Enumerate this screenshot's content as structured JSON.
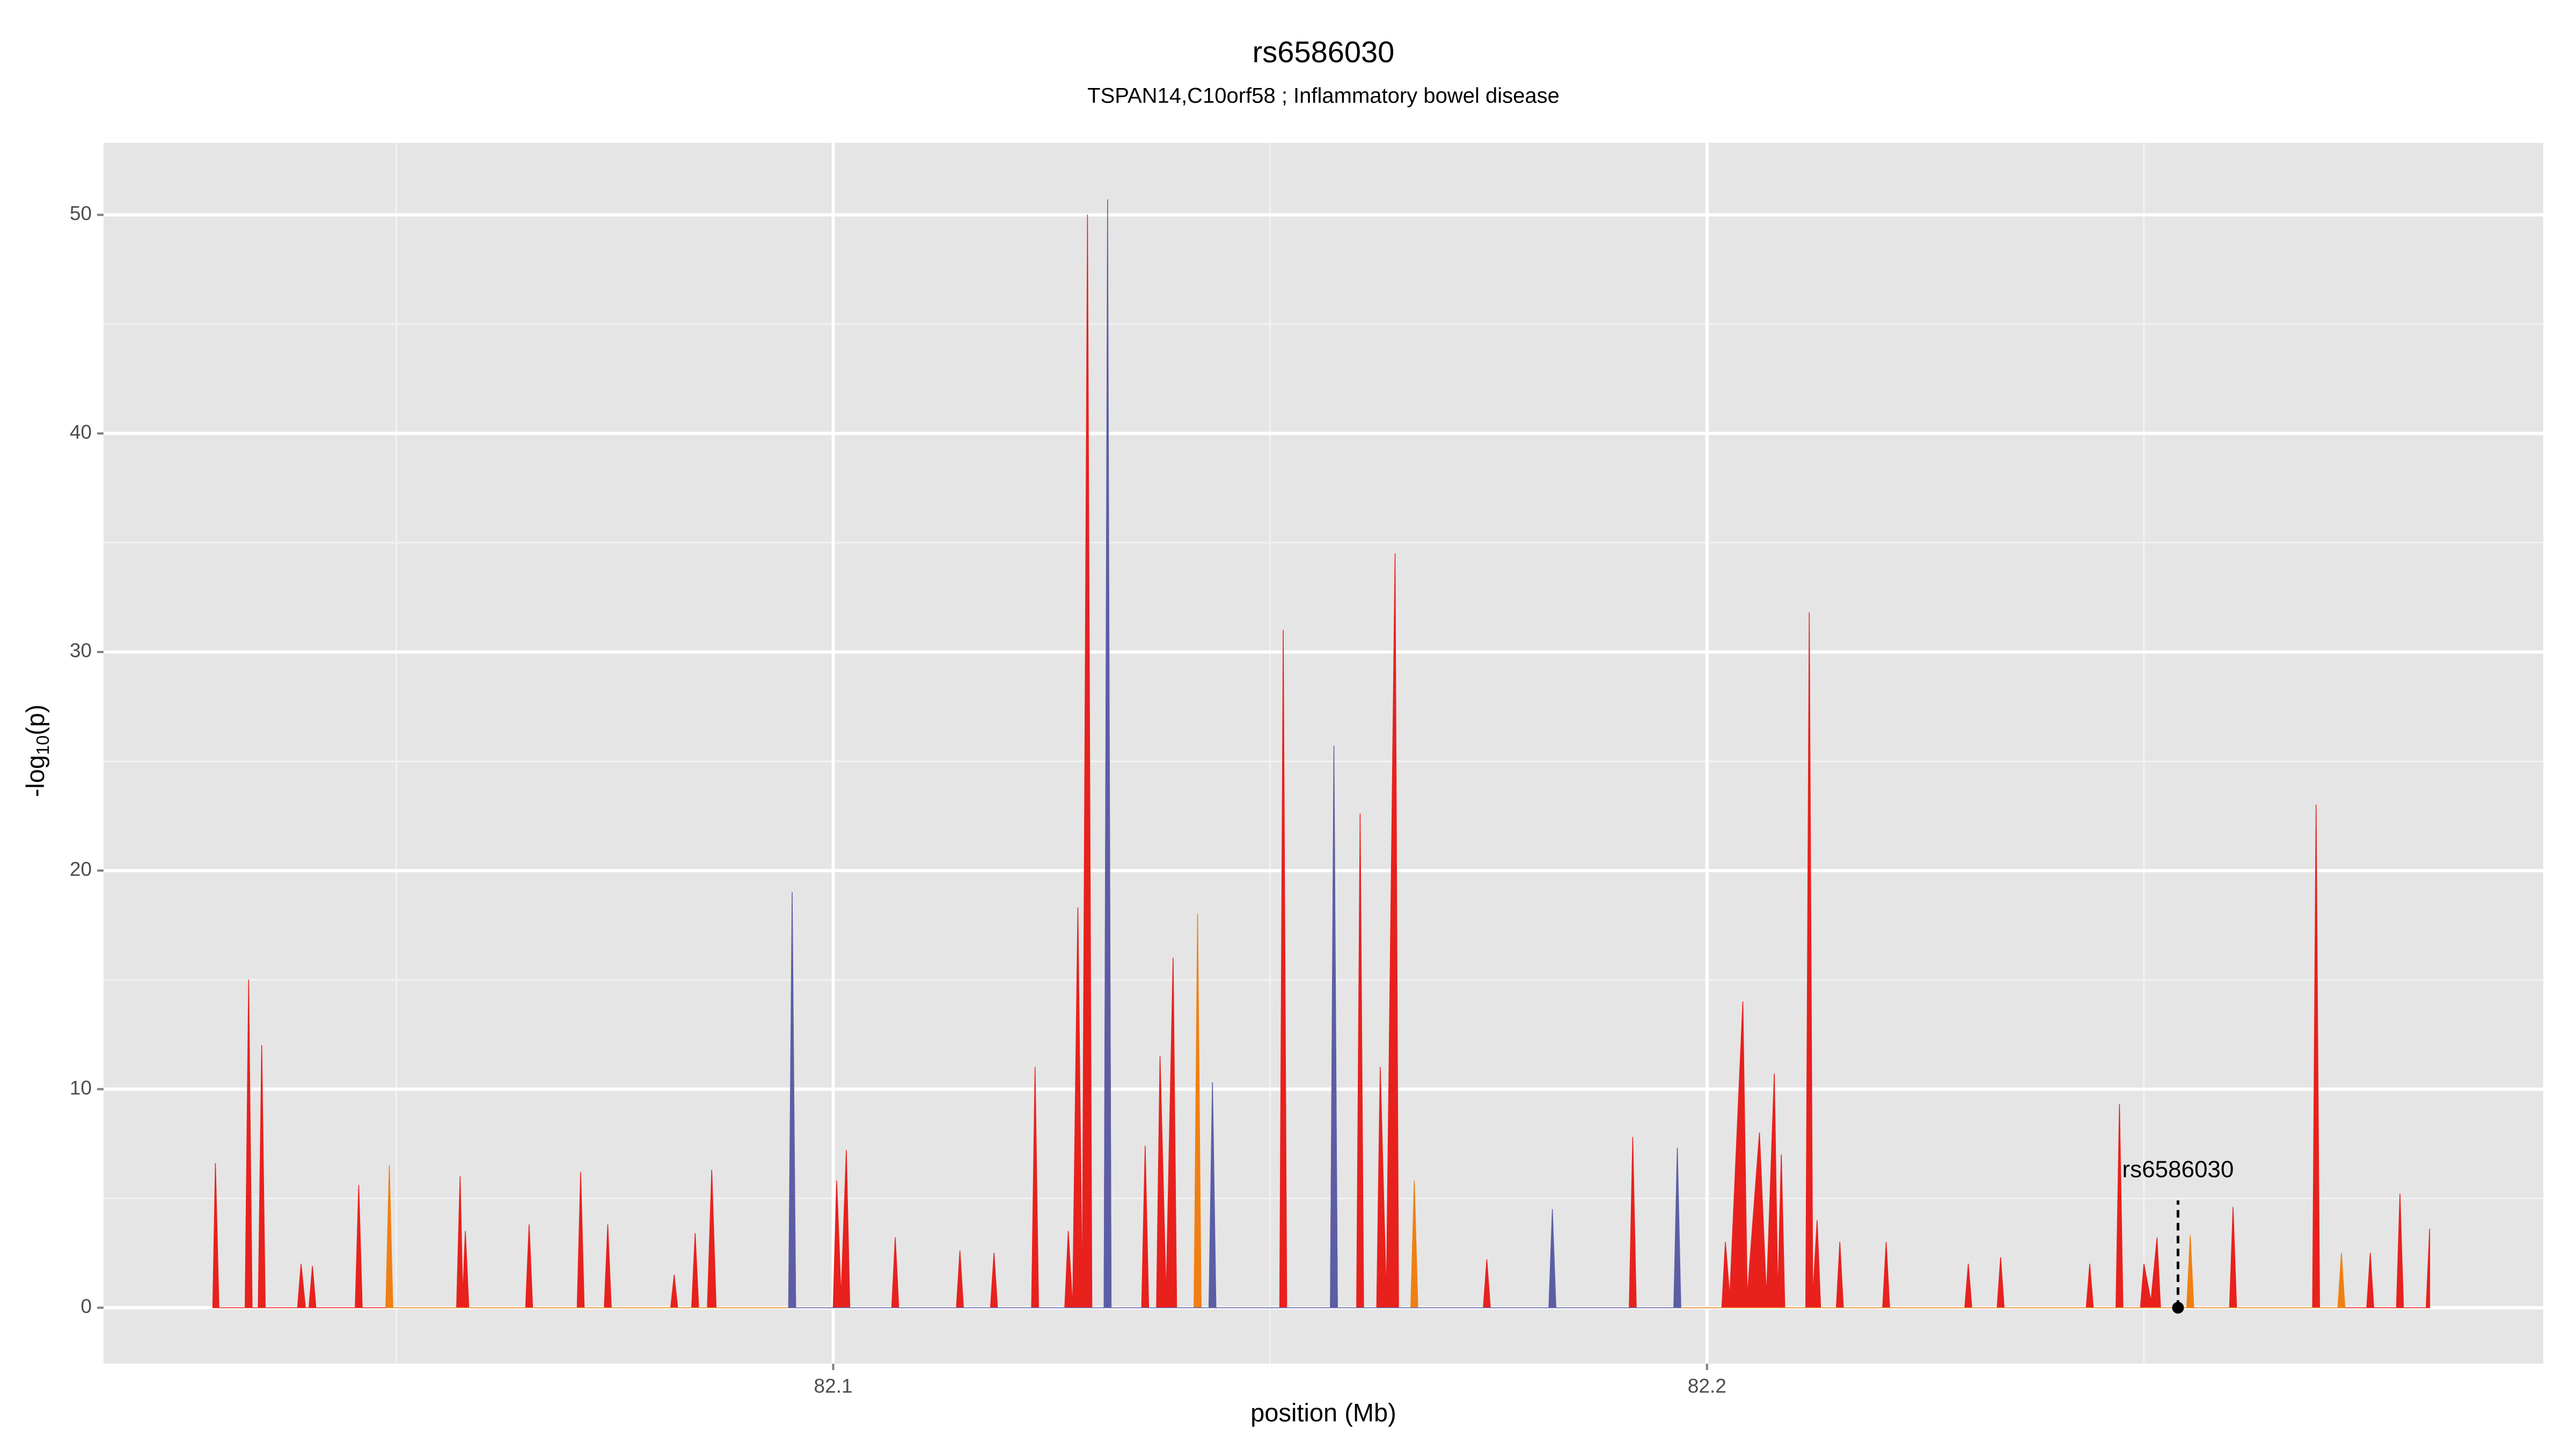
{
  "chart_data": {
    "type": "area",
    "title": "rs6586030",
    "subtitle": "TSPAN14,C10orf58 ; Inflammatory bowel disease",
    "x_label": "position (Mb)",
    "y_label": {
      "text": "-log",
      "subscript": "10",
      "suffix": "(p)"
    },
    "xlim": [
      82.0165,
      82.2957
    ],
    "ylim": [
      -2.56,
      53.3
    ],
    "xticks": [
      82.1,
      82.2
    ],
    "yticks": [
      0,
      10,
      20,
      30,
      40,
      50
    ],
    "x_minor_grid": [
      82.05,
      82.15,
      82.25
    ],
    "y_minor_grid": [
      5,
      15,
      25,
      35,
      45
    ],
    "grid": true,
    "series": [
      {
        "color": "#e8211d",
        "x": [
          82.029,
          82.0293,
          82.0297,
          82.0327,
          82.0331,
          82.0335,
          82.0342,
          82.0346,
          82.035,
          82.0387,
          82.0391,
          82.0396,
          82.04,
          82.0404,
          82.0408,
          82.0453,
          82.0457,
          82.0461,
          82.0488,
          82.0492,
          82.0496,
          82.0569,
          82.0573,
          82.0576,
          82.0579,
          82.0583,
          82.0648,
          82.0652,
          82.0656,
          82.0707,
          82.0711,
          82.0715,
          82.0738,
          82.0742,
          82.0746,
          82.0814,
          82.0818,
          82.0822,
          82.0838,
          82.0842,
          82.0846,
          82.0856,
          82.0861,
          82.0866,
          82.0949,
          82.0953,
          82.0957,
          82.1,
          82.1004,
          82.1009,
          82.1015,
          82.1019,
          82.1067,
          82.1071,
          82.1075,
          82.1141,
          82.1145,
          82.1149,
          82.118,
          82.1184,
          82.1188,
          82.1227,
          82.1231,
          82.1235,
          82.1265,
          82.1269,
          82.1274,
          82.128,
          82.1285,
          82.1291,
          82.1296,
          82.131,
          82.1314,
          82.1318,
          82.1353,
          82.1357,
          82.1361,
          82.137,
          82.1374,
          82.1381,
          82.1389,
          82.1393,
          82.1413,
          82.1417,
          82.1421,
          82.1511,
          82.1515,
          82.1519,
          82.1569,
          82.1573,
          82.1577,
          82.1599,
          82.1603,
          82.1607,
          82.1622,
          82.1626,
          82.1633,
          82.1643,
          82.1647,
          82.1744,
          82.1748,
          82.1752,
          82.1819,
          82.1823,
          82.1827,
          82.1911,
          82.1915,
          82.1919,
          82.1962,
          82.1966,
          82.197,
          82.2017,
          82.2021,
          82.2026,
          82.2041,
          82.2046,
          82.206,
          82.2068,
          82.2077,
          82.2081,
          82.2085,
          82.2089,
          82.2113,
          82.2117,
          82.2121,
          82.2126,
          82.213,
          82.2148,
          82.2152,
          82.2156,
          82.2201,
          82.2205,
          82.2209,
          82.2295,
          82.2299,
          82.2303,
          82.2332,
          82.2336,
          82.234,
          82.2434,
          82.2438,
          82.2442,
          82.2468,
          82.2472,
          82.2476,
          82.2496,
          82.25,
          82.2508,
          82.2515,
          82.2519,
          82.2598,
          82.2602,
          82.2606,
          82.2693,
          82.2697,
          82.2701,
          82.2755,
          82.2759,
          82.2763,
          82.2789,
          82.2793,
          82.2797,
          82.2823,
          82.2827
        ],
        "values": [
          0,
          6.6,
          0,
          0,
          15,
          0,
          0,
          12,
          0,
          0,
          2,
          0,
          0,
          1.9,
          0,
          0,
          5.6,
          0,
          0,
          4,
          0,
          0,
          6,
          0.5,
          3.5,
          0,
          0,
          3.8,
          0,
          0,
          6.2,
          0,
          0,
          3.8,
          0,
          0,
          1.5,
          0,
          0,
          3.4,
          0,
          0,
          6.3,
          0,
          0,
          18,
          0,
          0,
          5.8,
          0.5,
          7.2,
          0,
          0,
          3.2,
          0,
          0,
          2.6,
          0,
          0,
          2.5,
          0,
          0,
          11,
          0,
          0,
          3.5,
          0,
          18.3,
          0.5,
          50,
          0,
          0,
          48,
          0,
          0,
          7.4,
          0,
          0,
          11.5,
          0.5,
          16,
          0,
          0,
          14,
          0,
          0,
          31,
          0,
          0,
          24,
          0,
          0,
          22.6,
          0,
          0,
          11,
          0.5,
          34.5,
          0,
          0,
          2.2,
          0,
          0,
          3.5,
          0,
          0,
          7.8,
          0,
          0,
          6,
          0,
          0,
          3,
          0.5,
          14,
          0.5,
          8,
          0.5,
          10.7,
          0.5,
          7,
          0,
          0,
          31.8,
          0.5,
          4,
          0,
          0,
          3,
          0,
          0,
          3,
          0,
          0,
          2,
          0,
          0,
          2.3,
          0,
          0,
          2,
          0,
          0,
          9.3,
          0,
          0,
          2,
          0.3,
          3.2,
          0,
          0,
          4.6,
          0,
          0,
          23,
          0,
          0,
          2.5,
          0,
          0,
          5.2,
          0,
          0,
          3.6
        ]
      },
      {
        "color": "#f07f13",
        "x": [
          82.0488,
          82.0492,
          82.0496,
          82.1413,
          82.1417,
          82.1421,
          82.1661,
          82.1665,
          82.1669,
          82.2549,
          82.2553,
          82.2557,
          82.2722,
          82.2726,
          82.273
        ],
        "values": [
          0,
          6.5,
          0,
          0,
          18,
          0,
          0,
          5.8,
          0,
          0,
          3.3,
          0,
          0,
          2.5,
          0
        ]
      },
      {
        "color": "#5b5ea6",
        "x": [
          82.0949,
          82.0953,
          82.0957,
          82.131,
          82.1314,
          82.1318,
          82.143,
          82.1434,
          82.1438,
          82.1569,
          82.1573,
          82.1577,
          82.1819,
          82.1823,
          82.1827,
          82.1962,
          82.1966,
          82.197
        ],
        "values": [
          0,
          19,
          0,
          0,
          50.7,
          0,
          0,
          10.3,
          0,
          0,
          25.7,
          0,
          0,
          4.5,
          0,
          0,
          7.3,
          0
        ]
      }
    ],
    "annotation": {
      "text": "rs6586030",
      "x": 82.2539,
      "y": 0
    }
  }
}
